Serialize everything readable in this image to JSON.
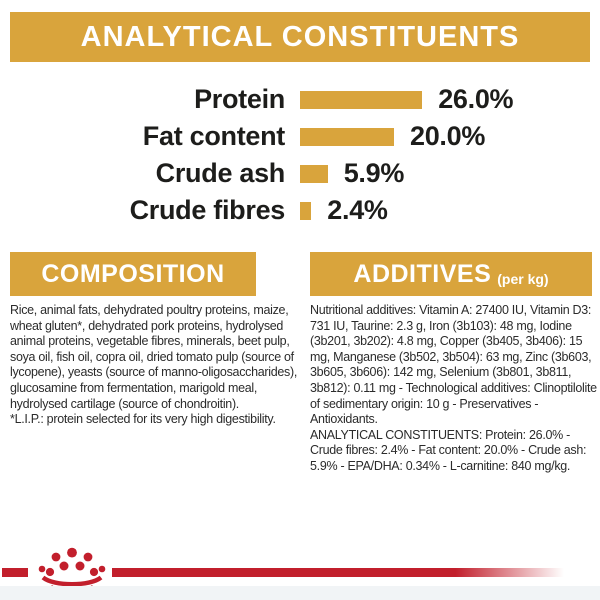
{
  "header": {
    "title": "ANALYTICAL CONSTITUENTS"
  },
  "chart_data": {
    "type": "bar",
    "orientation": "horizontal",
    "title": "ANALYTICAL CONSTITUENTS",
    "categories": [
      "Protein",
      "Fat content",
      "Crude ash",
      "Crude fibres"
    ],
    "values": [
      26.0,
      20.0,
      5.9,
      2.4
    ],
    "value_labels": [
      "26.0%",
      "20.0%",
      "5.9%",
      "2.4%"
    ],
    "unit": "%",
    "xlim": [
      0,
      30
    ],
    "grid": false,
    "legend": false,
    "bar_color": "#D9A43C"
  },
  "composition": {
    "heading": "COMPOSITION",
    "body": "Rice, animal fats, dehydrated poultry proteins, maize, wheat gluten*, dehydrated pork proteins, hydrolysed animal proteins, vegetable fibres, minerals, beet pulp, soya oil, fish oil, copra oil, dried tomato pulp (source of lycopene), yeasts (source of manno-oligosaccharides), glucosamine from fermentation, marigold meal, hydrolysed cartilage (source of chondroitin).",
    "footnote": "*L.I.P.: protein selected for its very high digestibility."
  },
  "additives": {
    "heading": "ADDITIVES",
    "heading_suffix": "(per kg)",
    "nutritional": "Nutritional additives: Vitamin A: 27400 IU, Vitamin D3: 731 IU, Taurine: 2.3 g, Iron (3b103): 48 mg, Iodine (3b201, 3b202): 4.8 mg, Copper (3b405, 3b406): 15 mg, Manganese (3b502, 3b504): 63 mg, Zinc (3b603, 3b605, 3b606): 142 mg, Selenium (3b801, 3b811, 3b812): 0.11 mg - Technological additives: Clinoptilolite of sedimentary origin: 10 g - Preservatives - Antioxidants.",
    "analytical": "ANALYTICAL CONSTITUENTS: Protein: 26.0% - Crude fibres: 2.4% - Fat content: 20.0% - Crude ash: 5.9% - EPA/DHA: 0.34% - L-carnitine: 840 mg/kg."
  },
  "footer": {
    "brand": "royal-canin-crown-logo"
  },
  "colors": {
    "gold": "#D9A43C",
    "red": "#C21F2C",
    "text": "#1D1D1B"
  }
}
